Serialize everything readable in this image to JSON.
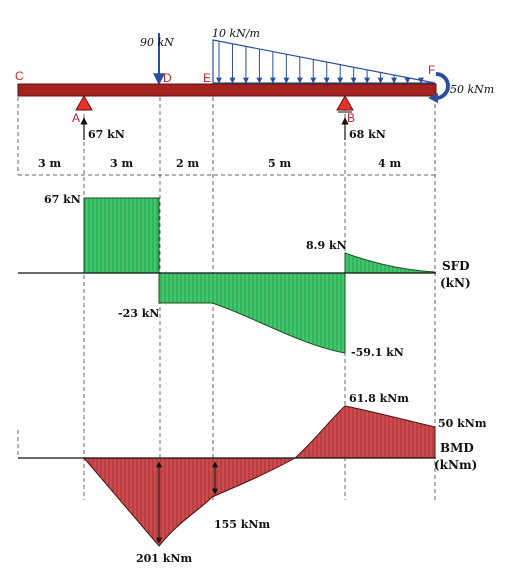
{
  "beam": {
    "points": {
      "C": "C",
      "A": "A",
      "D": "D",
      "E": "E",
      "B": "B",
      "F": "F"
    },
    "load_point": "90 kN",
    "load_udl": "10 kN/m",
    "moment": "50 kNm",
    "reaction_a": "67 kN",
    "reaction_b": "68 kN",
    "spans": [
      "3 m",
      "3 m",
      "2 m",
      "5 m",
      "4 m"
    ]
  },
  "sfd": {
    "title": "SFD",
    "unit": "(kN)",
    "labels": [
      "67 kN",
      "8.9 kN",
      "-23 kN",
      "-59.1 kN"
    ]
  },
  "bmd": {
    "title": "BMD",
    "unit": "(kNm)",
    "labels": [
      "61.8 kNm",
      "50 kNm",
      "155 kNm",
      "201 kNm"
    ]
  },
  "colors": {
    "beam": "#a4231f",
    "support": "#e8312a",
    "sfd_fill": "#3fc86a",
    "bmd_fill": "#cf4a4e",
    "moment_arrow": "#2a4f9e",
    "load_arrow": "#2a4f9e",
    "point_label": "#c2262b"
  }
}
